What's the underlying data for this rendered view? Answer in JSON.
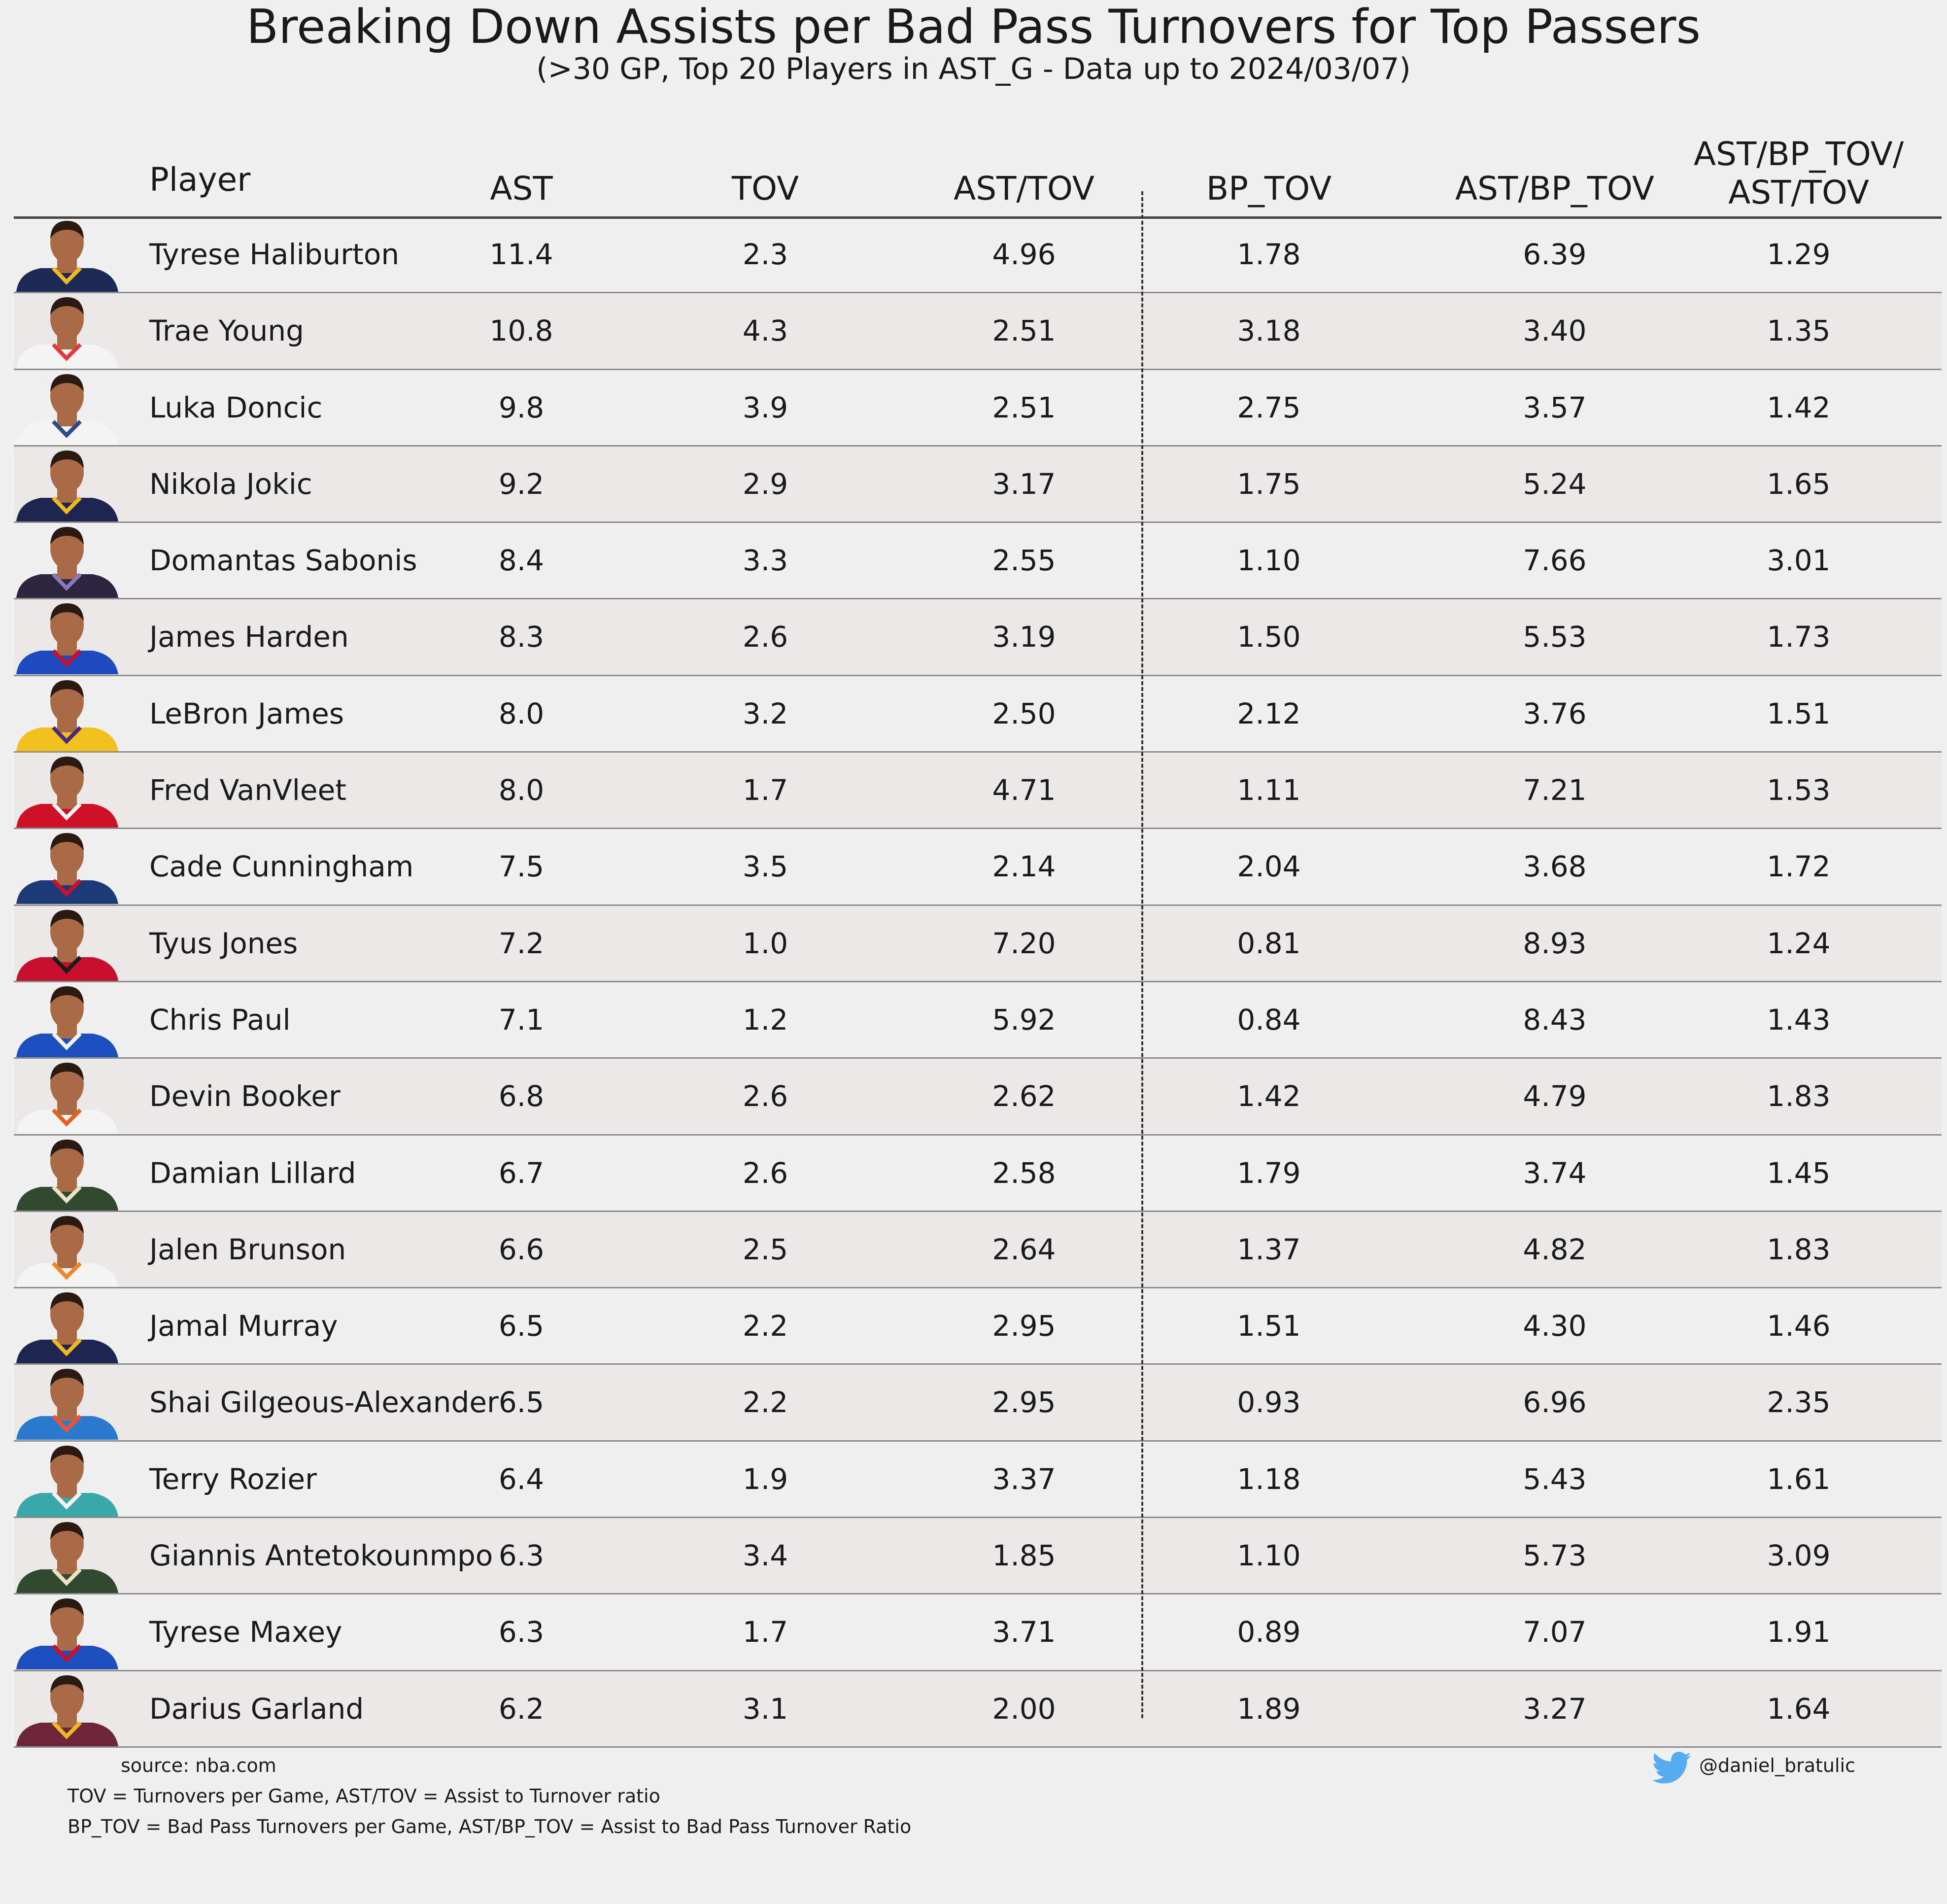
{
  "title": "Breaking Down Assists per Bad Pass Turnovers for Top Passers",
  "subtitle": "(>30 GP, Top 20 Players in AST_G - Data up to 2024/03/07)",
  "chart_data": {
    "type": "table",
    "columns": [
      "Player",
      "AST",
      "TOV",
      "AST/TOV",
      "BP_TOV",
      "AST/BP_TOV",
      "AST/BP_TOV/\nAST/TOV"
    ],
    "rows": [
      {
        "name": "Tyrese Haliburton",
        "ast": "11.4",
        "tov": "2.3",
        "ast_tov": "4.96",
        "bp_tov": "1.78",
        "ast_bp_tov": "6.39",
        "ratio": "1.29",
        "jersey": "#1b2a55",
        "trim": "#f2b81f"
      },
      {
        "name": "Trae Young",
        "ast": "10.8",
        "tov": "4.3",
        "ast_tov": "2.51",
        "bp_tov": "3.18",
        "ast_bp_tov": "3.40",
        "ratio": "1.35",
        "jersey": "#f4f4f4",
        "trim": "#e03a3e"
      },
      {
        "name": "Luka Doncic",
        "ast": "9.8",
        "tov": "3.9",
        "ast_tov": "2.51",
        "bp_tov": "2.75",
        "ast_bp_tov": "3.57",
        "ratio": "1.42",
        "jersey": "#f4f4f4",
        "trim": "#2a4a8a"
      },
      {
        "name": "Nikola Jokic",
        "ast": "9.2",
        "tov": "2.9",
        "ast_tov": "3.17",
        "bp_tov": "1.75",
        "ast_bp_tov": "5.24",
        "ratio": "1.65",
        "jersey": "#1d2650",
        "trim": "#f2b81f"
      },
      {
        "name": "Domantas Sabonis",
        "ast": "8.4",
        "tov": "3.3",
        "ast_tov": "2.55",
        "bp_tov": "1.10",
        "ast_bp_tov": "7.66",
        "ratio": "3.01",
        "jersey": "#2b2540",
        "trim": "#8a76b8"
      },
      {
        "name": "James Harden",
        "ast": "8.3",
        "tov": "2.6",
        "ast_tov": "3.19",
        "bp_tov": "1.50",
        "ast_bp_tov": "5.53",
        "ratio": "1.73",
        "jersey": "#1e4bbf",
        "trim": "#c8102e"
      },
      {
        "name": "LeBron James",
        "ast": "8.0",
        "tov": "3.2",
        "ast_tov": "2.50",
        "bp_tov": "2.12",
        "ast_bp_tov": "3.76",
        "ratio": "1.51",
        "jersey": "#f3c11d",
        "trim": "#4a2a7a"
      },
      {
        "name": "Fred VanVleet",
        "ast": "8.0",
        "tov": "1.7",
        "ast_tov": "4.71",
        "bp_tov": "1.11",
        "ast_bp_tov": "7.21",
        "ratio": "1.53",
        "jersey": "#ce1126",
        "trim": "#f4f4f4"
      },
      {
        "name": "Cade Cunningham",
        "ast": "7.5",
        "tov": "3.5",
        "ast_tov": "2.14",
        "bp_tov": "2.04",
        "ast_bp_tov": "3.68",
        "ratio": "1.72",
        "jersey": "#1d3a78",
        "trim": "#c8102e"
      },
      {
        "name": "Tyus Jones",
        "ast": "7.2",
        "tov": "1.0",
        "ast_tov": "7.20",
        "bp_tov": "0.81",
        "ast_bp_tov": "8.93",
        "ratio": "1.24",
        "jersey": "#c8102e",
        "trim": "#1b1b1b"
      },
      {
        "name": "Chris Paul",
        "ast": "7.1",
        "tov": "1.2",
        "ast_tov": "5.92",
        "bp_tov": "0.84",
        "ast_bp_tov": "8.43",
        "ratio": "1.43",
        "jersey": "#1d4fbf",
        "trim": "#f4f4f4"
      },
      {
        "name": "Devin Booker",
        "ast": "6.8",
        "tov": "2.6",
        "ast_tov": "2.62",
        "bp_tov": "1.42",
        "ast_bp_tov": "4.79",
        "ratio": "1.83",
        "jersey": "#f4f4f4",
        "trim": "#e56020"
      },
      {
        "name": "Damian Lillard",
        "ast": "6.7",
        "tov": "2.6",
        "ast_tov": "2.58",
        "bp_tov": "1.79",
        "ast_bp_tov": "3.74",
        "ratio": "1.45",
        "jersey": "#2f4a2f",
        "trim": "#eee1c6"
      },
      {
        "name": "Jalen Brunson",
        "ast": "6.6",
        "tov": "2.5",
        "ast_tov": "2.64",
        "bp_tov": "1.37",
        "ast_bp_tov": "4.82",
        "ratio": "1.83",
        "jersey": "#f4f4f4",
        "trim": "#f58426"
      },
      {
        "name": "Jamal Murray",
        "ast": "6.5",
        "tov": "2.2",
        "ast_tov": "2.95",
        "bp_tov": "1.51",
        "ast_bp_tov": "4.30",
        "ratio": "1.46",
        "jersey": "#1d2650",
        "trim": "#f2b81f"
      },
      {
        "name": "Shai Gilgeous-Alexander",
        "ast": "6.5",
        "tov": "2.2",
        "ast_tov": "2.95",
        "bp_tov": "0.93",
        "ast_bp_tov": "6.96",
        "ratio": "2.35",
        "jersey": "#2a7ad0",
        "trim": "#f05133"
      },
      {
        "name": "Terry Rozier",
        "ast": "6.4",
        "tov": "1.9",
        "ast_tov": "3.37",
        "bp_tov": "1.18",
        "ast_bp_tov": "5.43",
        "ratio": "1.61",
        "jersey": "#3aa7a8",
        "trim": "#f4f4f4"
      },
      {
        "name": "Giannis Antetokounmpo",
        "ast": "6.3",
        "tov": "3.4",
        "ast_tov": "1.85",
        "bp_tov": "1.10",
        "ast_bp_tov": "5.73",
        "ratio": "3.09",
        "jersey": "#2f4a2f",
        "trim": "#eee1c6"
      },
      {
        "name": "Tyrese Maxey",
        "ast": "6.3",
        "tov": "1.7",
        "ast_tov": "3.71",
        "bp_tov": "0.89",
        "ast_bp_tov": "7.07",
        "ratio": "1.91",
        "jersey": "#1d4fbf",
        "trim": "#c8102e"
      },
      {
        "name": "Darius Garland",
        "ast": "6.2",
        "tov": "3.1",
        "ast_tov": "2.00",
        "bp_tov": "1.89",
        "ast_bp_tov": "3.27",
        "ratio": "1.64",
        "jersey": "#6f263d",
        "trim": "#f2b81f"
      }
    ]
  },
  "footer": {
    "source": "source: nba.com",
    "legend_line1": "TOV = Turnovers per Game, AST/TOV = Assist to Turnover ratio",
    "legend_line2": "BP_TOV = Bad Pass Turnovers per Game, AST/BP_TOV = Assist to Bad Pass Turnover Ratio",
    "twitter_icon": "twitter-bird-icon",
    "twitter_color": "#55acee",
    "handle": "@daniel_bratulic"
  },
  "colors": {
    "background": "#f0f0f0",
    "row_stripe": "#ebe8e8",
    "skin": "#a86b45",
    "hair": "#2a1a12"
  }
}
